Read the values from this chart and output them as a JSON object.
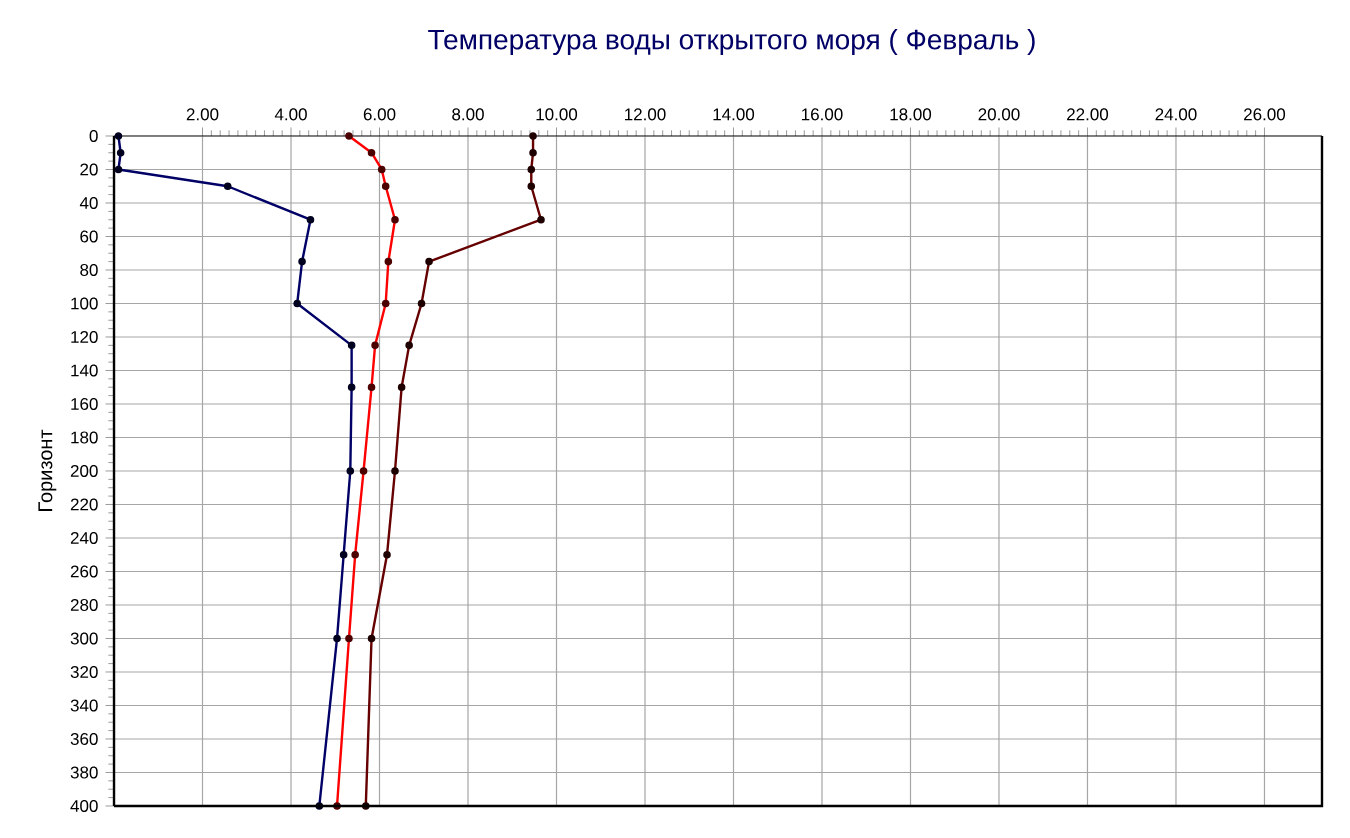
{
  "chart_data": {
    "type": "line",
    "title": "Температура воды открытого моря     ( Февраль )",
    "ylabel": "Горизонт",
    "xlim": [
      0,
      27.3
    ],
    "ylim": [
      400,
      0
    ],
    "xticks": [
      {
        "value": 2,
        "label": "2.00"
      },
      {
        "value": 4,
        "label": "4.00"
      },
      {
        "value": 6,
        "label": "6.00"
      },
      {
        "value": 8,
        "label": "8.00"
      },
      {
        "value": 10,
        "label": "10.00"
      },
      {
        "value": 12,
        "label": "12.00"
      },
      {
        "value": 14,
        "label": "14.00"
      },
      {
        "value": 16,
        "label": "16.00"
      },
      {
        "value": 18,
        "label": "18.00"
      },
      {
        "value": 20,
        "label": "20.00"
      },
      {
        "value": 22,
        "label": "22.00"
      },
      {
        "value": 24,
        "label": "24.00"
      },
      {
        "value": 26,
        "label": "26.00"
      }
    ],
    "yticks": [
      0,
      20,
      40,
      60,
      80,
      100,
      120,
      140,
      160,
      180,
      200,
      220,
      240,
      260,
      280,
      300,
      320,
      340,
      360,
      380,
      400
    ],
    "grid": true,
    "marker": "circle",
    "line_style": "solid",
    "series": [
      {
        "color": "#000066",
        "x": [
          0.1,
          0.15,
          0.1,
          2.57,
          4.44,
          4.25,
          4.14,
          5.37,
          5.37,
          5.34,
          5.19,
          5.04,
          4.64
        ],
        "values": [
          0,
          10,
          20,
          30,
          50,
          75,
          100,
          125,
          150,
          200,
          250,
          300,
          400
        ]
      },
      {
        "color": "#ff0000",
        "x": [
          5.31,
          5.82,
          6.05,
          6.14,
          6.35,
          6.2,
          6.14,
          5.9,
          5.82,
          5.64,
          5.45,
          5.31,
          5.04
        ],
        "values": [
          0,
          10,
          20,
          30,
          50,
          75,
          100,
          125,
          150,
          200,
          250,
          300,
          400
        ]
      },
      {
        "color": "#660000",
        "x": [
          9.47,
          9.47,
          9.43,
          9.43,
          9.65,
          7.12,
          6.95,
          6.67,
          6.5,
          6.35,
          6.17,
          5.82,
          5.69
        ],
        "values": [
          0,
          10,
          20,
          30,
          50,
          75,
          100,
          125,
          150,
          200,
          250,
          300,
          400
        ]
      }
    ]
  }
}
